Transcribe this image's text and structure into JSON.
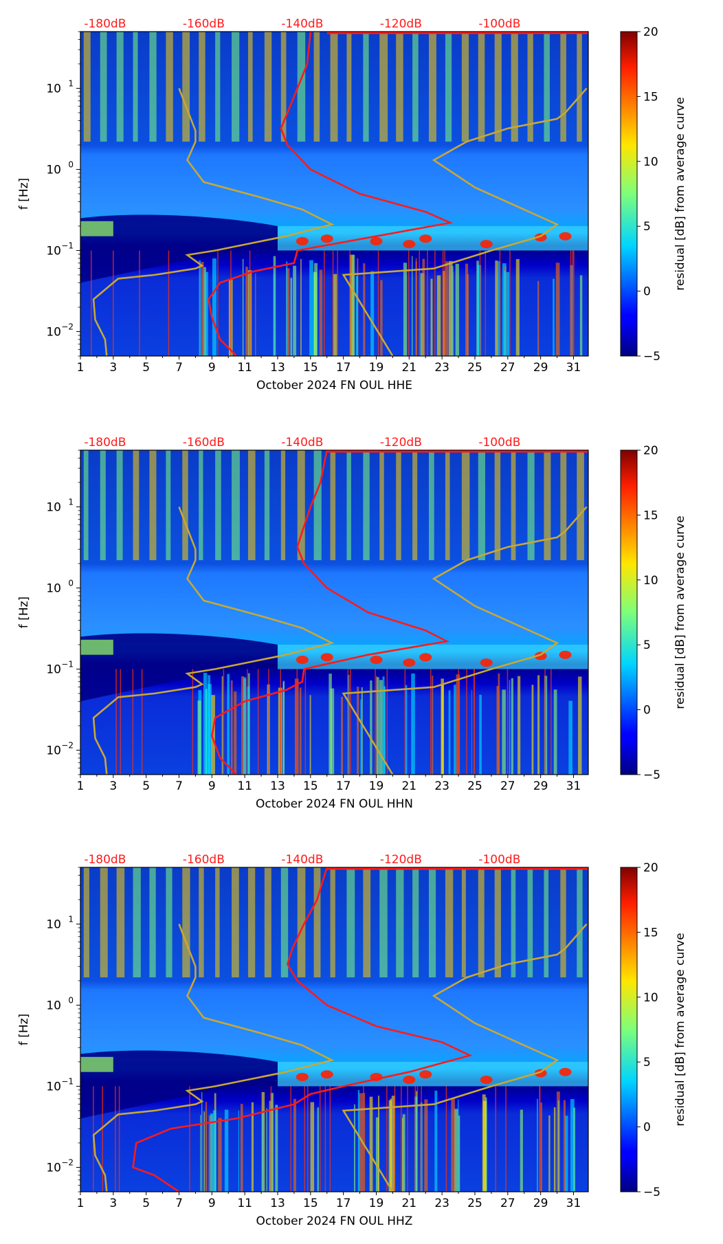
{
  "chart_data": [
    {
      "type": "heatmap",
      "channel": "HHE",
      "xlabel": "October 2024 FN OUL  HHE",
      "ylabel": "f [Hz]",
      "x_ticks": [
        "1",
        "3",
        "5",
        "7",
        "9",
        "11",
        "13",
        "15",
        "17",
        "19",
        "21",
        "23",
        "25",
        "27",
        "29",
        "31"
      ],
      "xlim": [
        1,
        31.9
      ],
      "y_scale": "log",
      "ylim": [
        0.005,
        50
      ],
      "y_ticks": [
        {
          "base": "10",
          "exp": "1",
          "value": 10
        },
        {
          "base": "10",
          "exp": "0",
          "value": 1
        },
        {
          "base": "10",
          "exp": "−1",
          "value": 0.1
        },
        {
          "base": "10",
          "exp": "−2",
          "value": 0.01
        }
      ],
      "top_axis_labels": [
        "-180dB",
        "-160dB",
        "-140dB",
        "-120dB",
        "-100dB"
      ],
      "top_axis_day": [
        2.5,
        8.5,
        14.5,
        20.5,
        26.5
      ],
      "colorbar": {
        "label": "residual [dB] from average curve",
        "ticks": [
          "20",
          "15",
          "10",
          "5",
          "0",
          "−5"
        ],
        "values": [
          20,
          15,
          10,
          5,
          0,
          -5
        ],
        "min": -5,
        "max": 20
      },
      "noise_model_curve": [
        [
          2.6,
          0.005
        ],
        [
          2.5,
          0.008
        ],
        [
          1.9,
          0.014
        ],
        [
          1.8,
          0.025
        ],
        [
          3.3,
          0.045
        ],
        [
          5.5,
          0.05
        ],
        [
          8.0,
          0.06
        ],
        [
          8.4,
          0.065
        ],
        [
          7.5,
          0.088
        ],
        [
          9.2,
          0.1
        ],
        [
          13.5,
          0.15
        ],
        [
          16.3,
          0.21
        ],
        [
          14.5,
          0.32
        ],
        [
          12.0,
          0.45
        ],
        [
          8.5,
          0.7
        ],
        [
          7.5,
          1.3
        ],
        [
          8.0,
          2.2
        ],
        [
          8.0,
          3.0
        ],
        [
          7.0,
          10.0
        ]
      ],
      "noise_model_curve_right": [
        [
          20.0,
          0.005
        ],
        [
          17.0,
          0.05
        ],
        [
          22.5,
          0.06
        ],
        [
          26.0,
          0.1
        ],
        [
          29.0,
          0.15
        ],
        [
          30.0,
          0.21
        ],
        [
          28.0,
          0.32
        ],
        [
          25.0,
          0.6
        ],
        [
          22.5,
          1.3
        ],
        [
          24.5,
          2.2
        ],
        [
          27.0,
          3.2
        ],
        [
          30.0,
          4.2
        ],
        [
          30.5,
          5.0
        ],
        [
          31.8,
          10.0
        ]
      ],
      "average_psd_curve": [
        [
          10.5,
          0.005
        ],
        [
          9.5,
          0.008
        ],
        [
          9.0,
          0.015
        ],
        [
          8.8,
          0.025
        ],
        [
          9.5,
          0.04
        ],
        [
          11.5,
          0.055
        ],
        [
          14.0,
          0.07
        ],
        [
          14.2,
          0.1
        ],
        [
          19.0,
          0.15
        ],
        [
          23.5,
          0.22
        ],
        [
          22.0,
          0.3
        ],
        [
          18.0,
          0.5
        ],
        [
          15.0,
          1.0
        ],
        [
          13.6,
          2.0
        ],
        [
          13.2,
          3.2
        ],
        [
          13.6,
          5.0
        ],
        [
          14.2,
          10.0
        ],
        [
          14.8,
          20.0
        ],
        [
          15.0,
          50.0
        ]
      ]
    },
    {
      "type": "heatmap",
      "channel": "HHN",
      "xlabel": "October 2024 FN OUL  HHN",
      "ylabel": "f [Hz]",
      "x_ticks": [
        "1",
        "3",
        "5",
        "7",
        "9",
        "11",
        "13",
        "15",
        "17",
        "19",
        "21",
        "23",
        "25",
        "27",
        "29",
        "31"
      ],
      "xlim": [
        1,
        31.9
      ],
      "y_scale": "log",
      "ylim": [
        0.005,
        50
      ],
      "y_ticks": [
        {
          "base": "10",
          "exp": "1",
          "value": 10
        },
        {
          "base": "10",
          "exp": "0",
          "value": 1
        },
        {
          "base": "10",
          "exp": "−1",
          "value": 0.1
        },
        {
          "base": "10",
          "exp": "−2",
          "value": 0.01
        }
      ],
      "top_axis_labels": [
        "-180dB",
        "-160dB",
        "-140dB",
        "-120dB",
        "-100dB"
      ],
      "top_axis_day": [
        2.5,
        8.5,
        14.5,
        20.5,
        26.5
      ],
      "colorbar": {
        "label": "residual [dB] from average curve",
        "ticks": [
          "20",
          "15",
          "10",
          "5",
          "0",
          "−5"
        ],
        "values": [
          20,
          15,
          10,
          5,
          0,
          -5
        ],
        "min": -5,
        "max": 20
      },
      "noise_model_curve": [
        [
          2.6,
          0.005
        ],
        [
          2.5,
          0.008
        ],
        [
          1.9,
          0.014
        ],
        [
          1.8,
          0.025
        ],
        [
          3.3,
          0.045
        ],
        [
          5.5,
          0.05
        ],
        [
          8.0,
          0.06
        ],
        [
          8.4,
          0.065
        ],
        [
          7.5,
          0.088
        ],
        [
          9.2,
          0.1
        ],
        [
          13.5,
          0.15
        ],
        [
          16.3,
          0.21
        ],
        [
          14.5,
          0.32
        ],
        [
          12.0,
          0.45
        ],
        [
          8.5,
          0.7
        ],
        [
          7.5,
          1.3
        ],
        [
          8.0,
          2.2
        ],
        [
          8.0,
          3.0
        ],
        [
          7.0,
          10.0
        ]
      ],
      "noise_model_curve_right": [
        [
          20.0,
          0.005
        ],
        [
          17.0,
          0.05
        ],
        [
          22.5,
          0.06
        ],
        [
          26.0,
          0.1
        ],
        [
          29.0,
          0.15
        ],
        [
          30.0,
          0.21
        ],
        [
          28.0,
          0.32
        ],
        [
          25.0,
          0.6
        ],
        [
          22.5,
          1.3
        ],
        [
          24.5,
          2.2
        ],
        [
          27.0,
          3.2
        ],
        [
          30.0,
          4.2
        ],
        [
          30.5,
          5.0
        ],
        [
          31.8,
          10.0
        ]
      ],
      "average_psd_curve": [
        [
          10.5,
          0.005
        ],
        [
          9.5,
          0.008
        ],
        [
          9.0,
          0.015
        ],
        [
          9.2,
          0.025
        ],
        [
          11.0,
          0.04
        ],
        [
          13.5,
          0.055
        ],
        [
          14.5,
          0.07
        ],
        [
          14.6,
          0.1
        ],
        [
          18.5,
          0.15
        ],
        [
          23.3,
          0.22
        ],
        [
          22.0,
          0.3
        ],
        [
          18.5,
          0.5
        ],
        [
          16.0,
          1.0
        ],
        [
          14.6,
          2.0
        ],
        [
          14.2,
          3.2
        ],
        [
          14.5,
          5.0
        ],
        [
          15.0,
          10.0
        ],
        [
          15.6,
          20.0
        ],
        [
          16.0,
          50.0
        ]
      ]
    },
    {
      "type": "heatmap",
      "channel": "HHZ",
      "xlabel": "October 2024 FN OUL  HHZ",
      "ylabel": "f [Hz]",
      "x_ticks": [
        "1",
        "3",
        "5",
        "7",
        "9",
        "11",
        "13",
        "15",
        "17",
        "19",
        "21",
        "23",
        "25",
        "27",
        "29",
        "31"
      ],
      "xlim": [
        1,
        31.9
      ],
      "y_scale": "log",
      "ylim": [
        0.005,
        50
      ],
      "y_ticks": [
        {
          "base": "10",
          "exp": "1",
          "value": 10
        },
        {
          "base": "10",
          "exp": "0",
          "value": 1
        },
        {
          "base": "10",
          "exp": "−1",
          "value": 0.1
        },
        {
          "base": "10",
          "exp": "−2",
          "value": 0.01
        }
      ],
      "top_axis_labels": [
        "-180dB",
        "-160dB",
        "-140dB",
        "-120dB",
        "-100dB"
      ],
      "top_axis_day": [
        2.5,
        8.5,
        14.5,
        20.5,
        26.5
      ],
      "colorbar": {
        "label": "residual [dB] from average curve",
        "ticks": [
          "20",
          "15",
          "10",
          "5",
          "0",
          "−5"
        ],
        "values": [
          20,
          15,
          10,
          5,
          0,
          -5
        ],
        "min": -5,
        "max": 20
      },
      "noise_model_curve": [
        [
          2.6,
          0.005
        ],
        [
          2.5,
          0.008
        ],
        [
          1.9,
          0.014
        ],
        [
          1.8,
          0.025
        ],
        [
          3.3,
          0.045
        ],
        [
          5.5,
          0.05
        ],
        [
          8.0,
          0.06
        ],
        [
          8.4,
          0.065
        ],
        [
          7.5,
          0.088
        ],
        [
          9.2,
          0.1
        ],
        [
          13.5,
          0.15
        ],
        [
          16.3,
          0.21
        ],
        [
          14.5,
          0.32
        ],
        [
          12.0,
          0.45
        ],
        [
          8.5,
          0.7
        ],
        [
          7.5,
          1.3
        ],
        [
          8.0,
          2.2
        ],
        [
          8.0,
          3.0
        ],
        [
          7.0,
          10.0
        ]
      ],
      "noise_model_curve_right": [
        [
          20.0,
          0.005
        ],
        [
          17.0,
          0.05
        ],
        [
          22.5,
          0.06
        ],
        [
          26.0,
          0.1
        ],
        [
          29.0,
          0.15
        ],
        [
          30.0,
          0.21
        ],
        [
          28.0,
          0.32
        ],
        [
          25.0,
          0.6
        ],
        [
          22.5,
          1.3
        ],
        [
          24.5,
          2.2
        ],
        [
          27.0,
          3.2
        ],
        [
          30.0,
          4.2
        ],
        [
          30.5,
          5.0
        ],
        [
          31.8,
          10.0
        ]
      ],
      "average_psd_curve": [
        [
          7.0,
          0.005
        ],
        [
          5.5,
          0.008
        ],
        [
          4.2,
          0.01
        ],
        [
          4.4,
          0.02
        ],
        [
          6.5,
          0.03
        ],
        [
          10.5,
          0.04
        ],
        [
          14.0,
          0.06
        ],
        [
          15.0,
          0.08
        ],
        [
          17.0,
          0.1
        ],
        [
          21.0,
          0.15
        ],
        [
          24.7,
          0.24
        ],
        [
          23.0,
          0.35
        ],
        [
          19.0,
          0.55
        ],
        [
          16.0,
          1.0
        ],
        [
          14.2,
          2.0
        ],
        [
          13.6,
          3.2
        ],
        [
          13.9,
          5.0
        ],
        [
          14.6,
          10.0
        ],
        [
          15.4,
          20.0
        ],
        [
          16.0,
          50.0
        ]
      ]
    }
  ]
}
